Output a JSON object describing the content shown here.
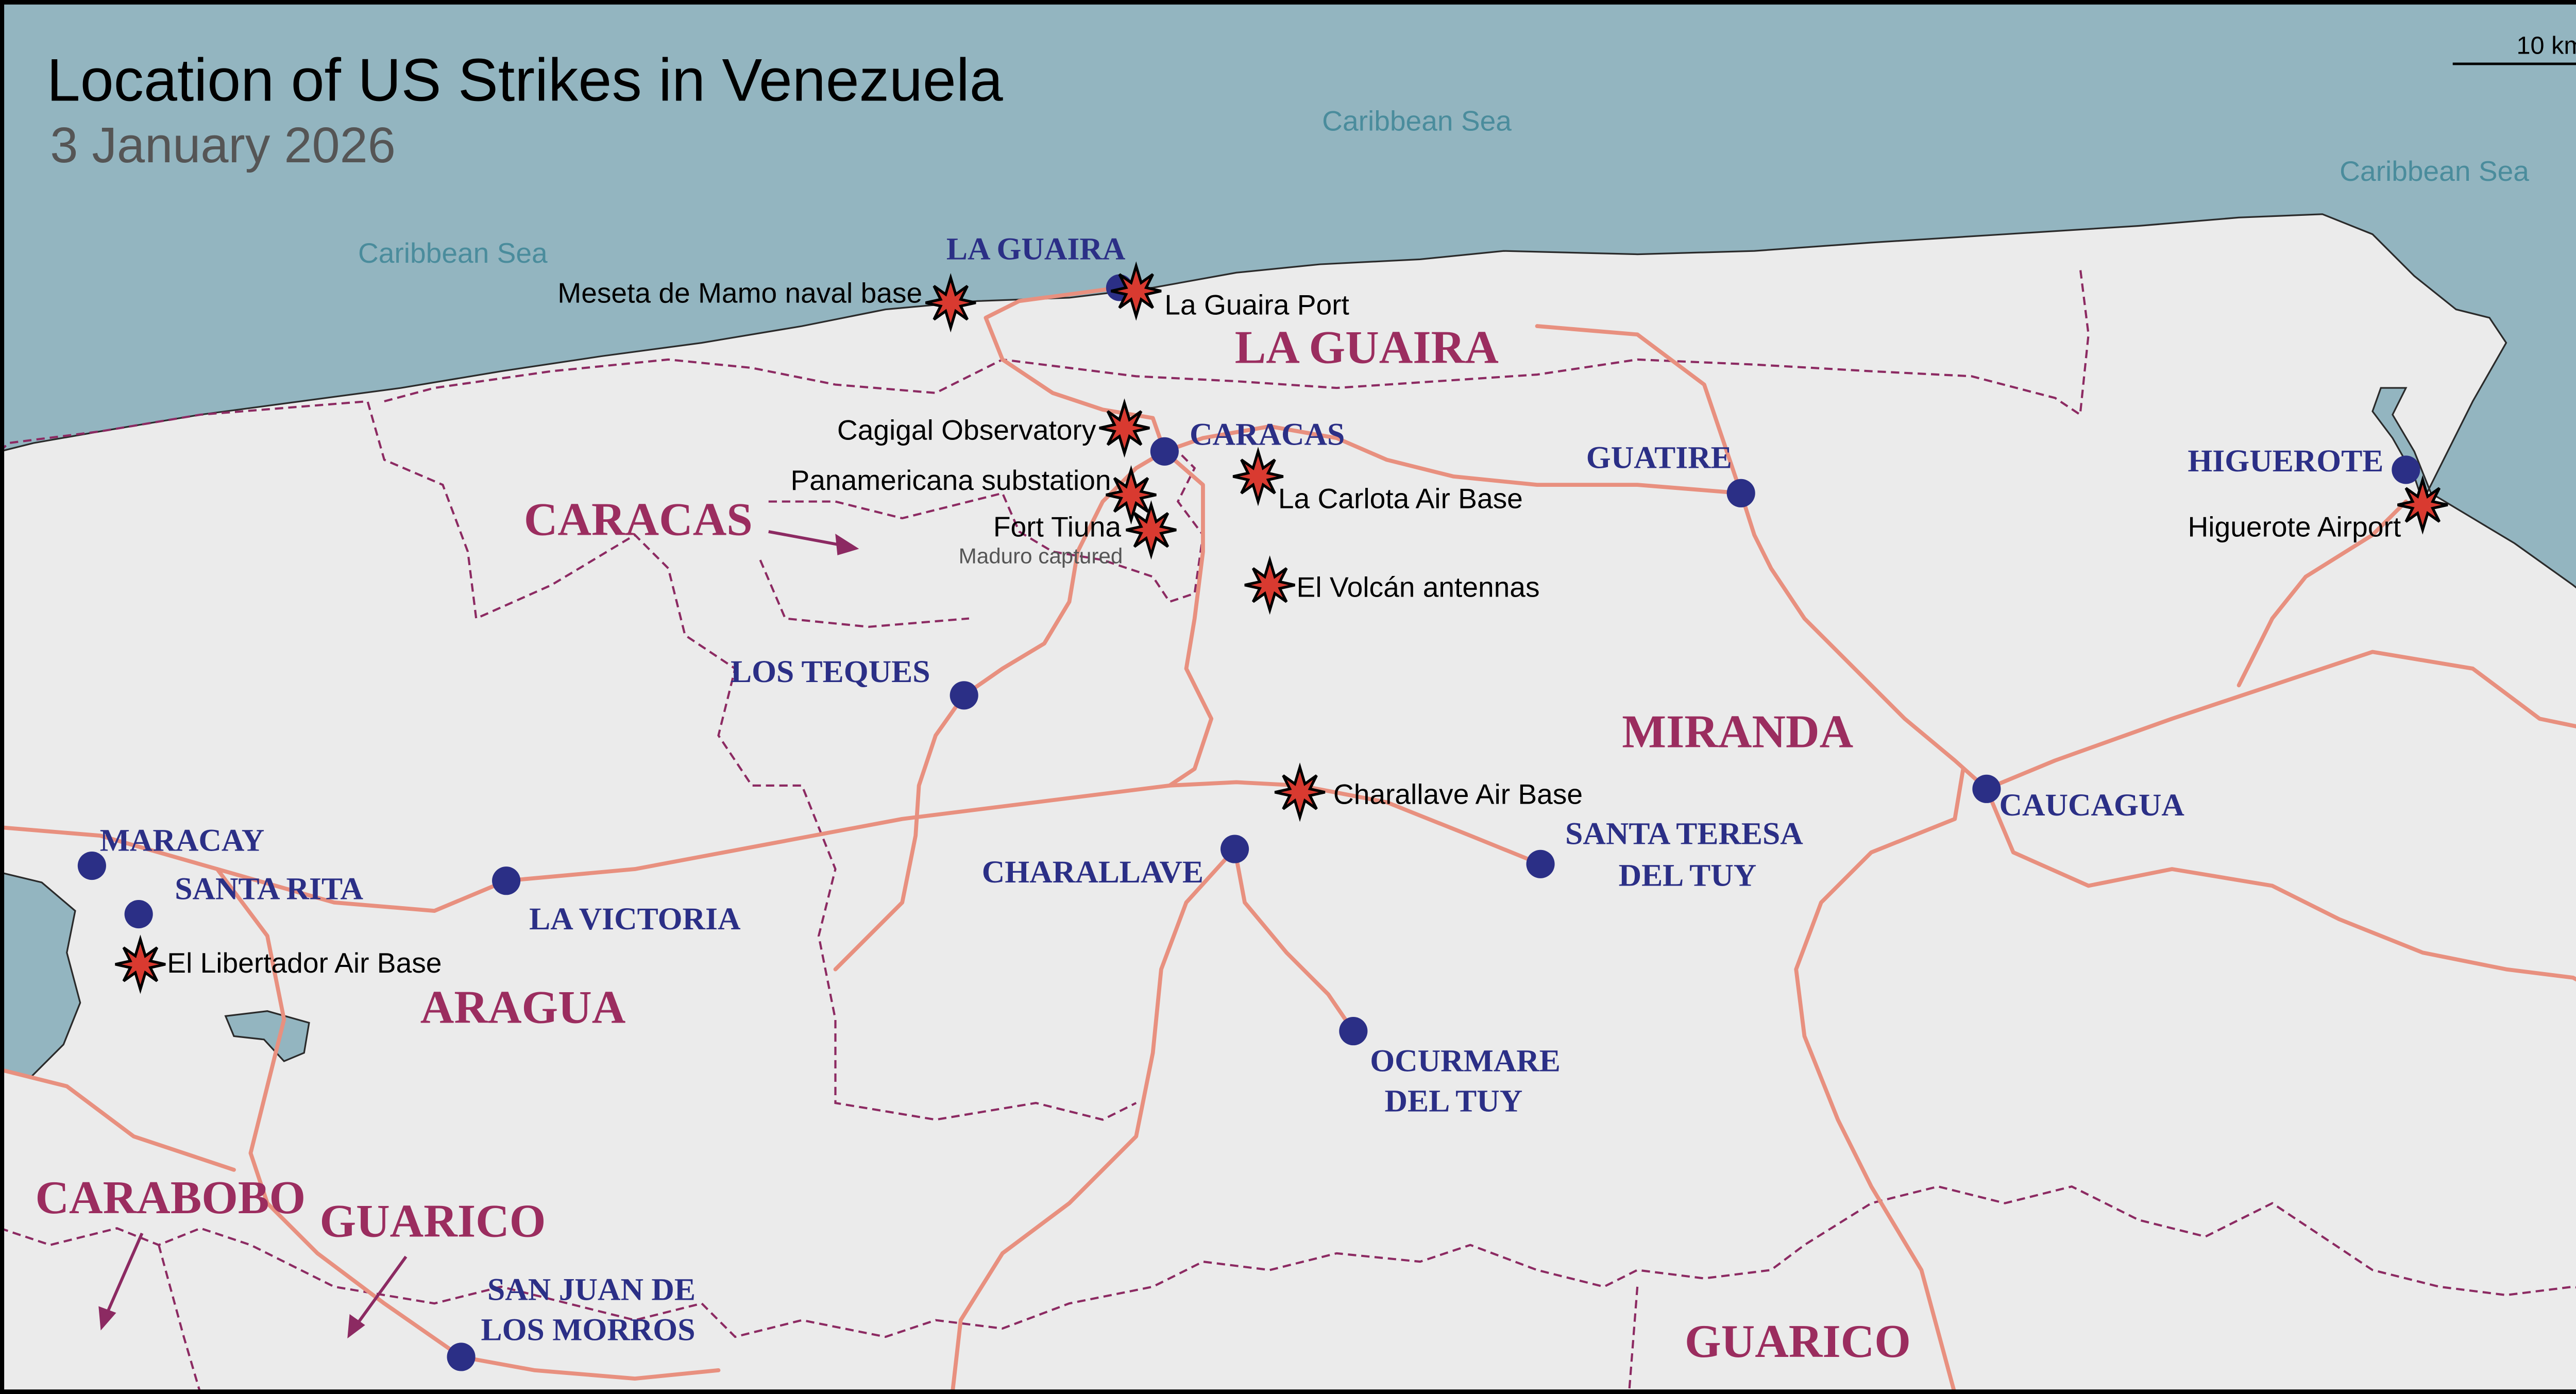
{
  "title": "Location of US Strikes in Venezuela",
  "subtitle": "3 January 2026",
  "scale_label": "10 km",
  "colors": {
    "sea": "#93b5c0",
    "land": "#ebebeb",
    "roads": "#e8907f",
    "borders": "#8c2a62",
    "city": "#2b2f86",
    "state": "#9b2d5f",
    "strike": "#d93a30"
  },
  "sea_labels": [
    "Caribbean Sea",
    "Caribbean Sea",
    "Caribbean Sea"
  ],
  "states": {
    "la_guaira": "LA GUAIRA",
    "caracas": "CARACAS",
    "miranda": "MIRANDA",
    "aragua": "ARAGUA",
    "carabobo": "CARABOBO",
    "guarico_west": "GUARICO",
    "guarico_south": "GUARICO"
  },
  "cities": {
    "la_guaira": "LA GUAIRA",
    "caracas": "CARACAS",
    "guatire": "GUATIRE",
    "higuerote": "HIGUEROTE",
    "los_teques": "LOS TEQUES",
    "maracay": "MARACAY",
    "santa_rita": "SANTA RITA",
    "la_victoria": "LA VICTORIA",
    "charallave": "CHARALLAVE",
    "santa_teresa_1": "SANTA TERESA",
    "santa_teresa_2": "DEL TUY",
    "caucagua": "CAUCAGUA",
    "ocumare_1": "OCURMARE",
    "ocumare_2": "DEL TUY",
    "san_juan_1": "SAN JUAN DE",
    "san_juan_2": "LOS MORROS"
  },
  "strikes": {
    "meseta": "Meseta de Mamo naval base",
    "port": "La Guaira Port",
    "cagigal": "Cagigal Observatory",
    "panamericana": "Panamericana substation",
    "tiuna": "Fort Tiuna",
    "tiuna_note": "Maduro captured",
    "carlota": "La Carlota Air Base",
    "volcan": "El Volcán antennas",
    "charallave": "Charallave Air Base",
    "higuerote": "Higuerote Airport",
    "libertador": "El Libertador Air Base"
  },
  "icons": {
    "strike": "explosion-star-icon",
    "city": "city-dot-icon"
  }
}
